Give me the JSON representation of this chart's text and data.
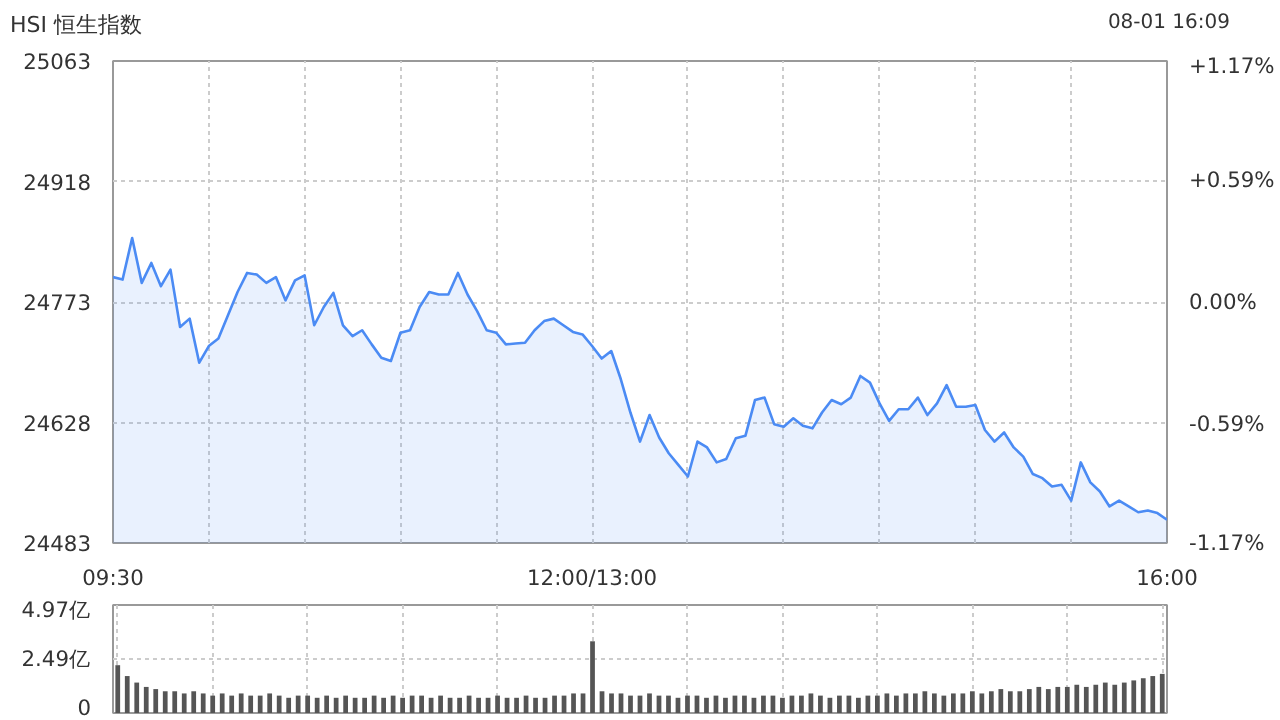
{
  "chart_data": [
    {
      "type": "area",
      "title": "HSI 恒生指数",
      "annotations": [
        "08-01 16:09"
      ],
      "grid": true,
      "categories": [
        "09:30",
        null,
        null,
        null,
        null,
        null,
        null,
        null,
        null,
        null,
        null,
        null,
        null,
        null,
        null,
        null,
        null,
        null,
        null,
        null,
        null,
        null,
        null,
        null,
        null,
        null,
        null,
        null,
        null,
        null,
        null,
        null,
        null,
        null,
        null,
        null,
        null,
        null,
        null,
        null,
        null,
        null,
        null,
        null,
        null,
        null,
        null,
        null,
        null,
        null,
        "12:00/13:00",
        null,
        null,
        null,
        null,
        null,
        null,
        null,
        null,
        null,
        null,
        null,
        null,
        null,
        null,
        null,
        null,
        null,
        null,
        null,
        null,
        null,
        null,
        null,
        null,
        null,
        null,
        null,
        null,
        null,
        null,
        null,
        null,
        null,
        null,
        null,
        null,
        null,
        null,
        null,
        null,
        null,
        null,
        null,
        null,
        null,
        null,
        null,
        null,
        null,
        null,
        null,
        null,
        null,
        null,
        null,
        null,
        null,
        null,
        null,
        "16:00"
      ],
      "series": [
        {
          "color": "#4b8bf4",
          "values": [
            24803,
            24800,
            24850,
            24796,
            24820,
            24792,
            24812,
            24743,
            24753,
            24700,
            24720,
            24729,
            24757,
            24785,
            24808,
            24806,
            24796,
            24803,
            24775,
            24799,
            24805,
            24745,
            24767,
            24784,
            24745,
            24732,
            24739,
            24722,
            24706,
            24702,
            24736,
            24739,
            24767,
            24785,
            24782,
            24782,
            24808,
            24782,
            24762,
            24739,
            24736,
            24722,
            24723,
            24724,
            24739,
            24750,
            24753,
            24745,
            24737,
            24734,
            24720,
            24705,
            24714,
            24680,
            24640,
            24605,
            24637,
            24610,
            24591,
            24577,
            24563,
            24605,
            24598,
            24580,
            24584,
            24609,
            24612,
            24655,
            24658,
            24626,
            24623,
            24633,
            24624,
            24621,
            24640,
            24655,
            24650,
            24658,
            24684,
            24676,
            24651,
            24630,
            24644,
            24644,
            24658,
            24637,
            24651,
            24673,
            24647,
            24647,
            24649,
            24619,
            24605,
            24616,
            24598,
            24587,
            24566,
            24561,
            24551,
            24553,
            24534,
            24580,
            24556,
            24545,
            24527,
            24534,
            24527,
            24520,
            24522,
            24519,
            24511
          ]
        }
      ],
      "ylim": [
        24483,
        25063
      ],
      "yticks": [
        24483,
        24628,
        24773,
        24918,
        25063
      ],
      "y2lim": [
        -1.17,
        1.17
      ],
      "y2ticks": [
        {
          "value": -1.17,
          "label": "-1.17%"
        },
        {
          "value": -0.59,
          "label": "-0.59%"
        },
        {
          "value": 0,
          "label": "0.00%"
        },
        {
          "value": 0.59,
          "label": "+0.59%"
        },
        {
          "value": 1.17,
          "label": "+1.17%"
        }
      ]
    },
    {
      "type": "bar",
      "grid": true,
      "tick_labels": "y",
      "categories": [
        null,
        null,
        null,
        null,
        null,
        null,
        null,
        null,
        null,
        null,
        null,
        null,
        null,
        null,
        null,
        null,
        null,
        null,
        null,
        null,
        null,
        null,
        null,
        null,
        null,
        null,
        null,
        null,
        null,
        null,
        null,
        null,
        null,
        null,
        null,
        null,
        null,
        null,
        null,
        null,
        null,
        null,
        null,
        null,
        null,
        null,
        null,
        null,
        null,
        null,
        null,
        null,
        null,
        null,
        null,
        null,
        null,
        null,
        null,
        null,
        null,
        null,
        null,
        null,
        null,
        null,
        null,
        null,
        null,
        null,
        null,
        null,
        null,
        null,
        null,
        null,
        null,
        null,
        null,
        null,
        null,
        null,
        null,
        null,
        null,
        null,
        null,
        null,
        null,
        null,
        null,
        null,
        null,
        null,
        null,
        null,
        null,
        null,
        null,
        null,
        null,
        null,
        null,
        null,
        null,
        null,
        null,
        null,
        null,
        null,
        null
      ],
      "series": [
        {
          "color": "#555555",
          "values": [
            2.2,
            1.7,
            1.4,
            1.2,
            1.1,
            1.0,
            1.0,
            0.9,
            1.0,
            0.9,
            0.8,
            0.9,
            0.8,
            0.9,
            0.8,
            0.8,
            0.9,
            0.8,
            0.7,
            0.8,
            0.8,
            0.7,
            0.8,
            0.7,
            0.8,
            0.7,
            0.7,
            0.8,
            0.7,
            0.8,
            0.7,
            0.8,
            0.8,
            0.7,
            0.8,
            0.7,
            0.7,
            0.8,
            0.7,
            0.7,
            0.8,
            0.7,
            0.7,
            0.8,
            0.7,
            0.7,
            0.8,
            0.8,
            0.9,
            0.9,
            3.3,
            1.0,
            0.9,
            0.9,
            0.8,
            0.8,
            0.9,
            0.8,
            0.8,
            0.7,
            0.8,
            0.8,
            0.7,
            0.8,
            0.7,
            0.8,
            0.8,
            0.7,
            0.8,
            0.8,
            0.7,
            0.8,
            0.8,
            0.9,
            0.8,
            0.7,
            0.8,
            0.8,
            0.7,
            0.8,
            0.8,
            0.9,
            0.8,
            0.9,
            0.9,
            1.0,
            0.9,
            0.8,
            0.9,
            0.9,
            1.0,
            0.9,
            1.0,
            1.1,
            1.0,
            1.0,
            1.1,
            1.2,
            1.1,
            1.2,
            1.2,
            1.3,
            1.2,
            1.3,
            1.4,
            1.3,
            1.4,
            1.5,
            1.6,
            1.7,
            1.8
          ]
        }
      ],
      "ylim": [
        0,
        4.97
      ],
      "yticks": [
        0,
        {
          "value": 2.49,
          "label": "2.49亿"
        },
        {
          "value": 4.97,
          "label": "4.97亿"
        }
      ]
    }
  ]
}
